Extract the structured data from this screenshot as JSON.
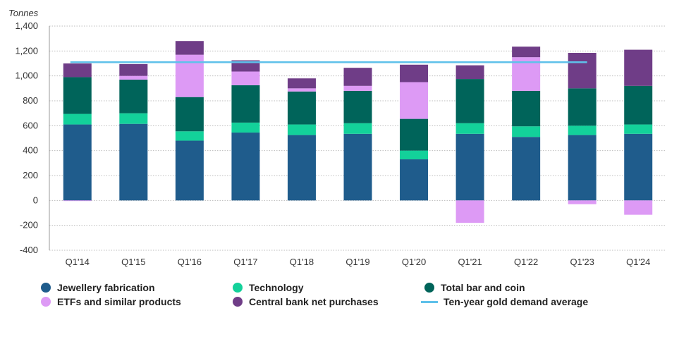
{
  "chart_data": {
    "type": "bar",
    "stacked": true,
    "unit_label": "Tonnes",
    "categories": [
      "Q1'14",
      "Q1'15",
      "Q1'16",
      "Q1'17",
      "Q1'18",
      "Q1'19",
      "Q1'20",
      "Q1'21",
      "Q1'22",
      "Q1'23",
      "Q1'24"
    ],
    "series": [
      {
        "name": "Jewellery fabrication",
        "color": "#1f5c8c",
        "values": [
          610,
          615,
          480,
          545,
          525,
          535,
          330,
          535,
          510,
          525,
          535
        ]
      },
      {
        "name": "Technology",
        "color": "#13d19a",
        "values": [
          85,
          85,
          75,
          80,
          85,
          85,
          70,
          85,
          85,
          75,
          75
        ]
      },
      {
        "name": "Total bar and coin",
        "color": "#00645a",
        "values": [
          295,
          270,
          275,
          300,
          265,
          260,
          255,
          355,
          285,
          300,
          310
        ]
      },
      {
        "name": "ETFs and similar products",
        "color": "#dd9af5",
        "values": [
          -5,
          30,
          340,
          110,
          25,
          40,
          295,
          -180,
          270,
          -30,
          -115
        ]
      },
      {
        "name": "Central bank net purchases",
        "color": "#6f3d87",
        "values": [
          110,
          95,
          110,
          90,
          80,
          145,
          140,
          110,
          85,
          285,
          290
        ]
      }
    ],
    "average_line": {
      "name": "Ten-year gold demand average",
      "color": "#5fc1ea",
      "value": 1110
    },
    "ylim": [
      -400,
      1400
    ],
    "yticks": [
      -400,
      -200,
      0,
      200,
      400,
      600,
      800,
      1000,
      1200,
      1400
    ],
    "ytick_labels": [
      "-400",
      "-200",
      "0",
      "200",
      "400",
      "600",
      "800",
      "1,000",
      "1,200",
      "1,400"
    ],
    "grid": true,
    "legend_position": "bottom"
  }
}
